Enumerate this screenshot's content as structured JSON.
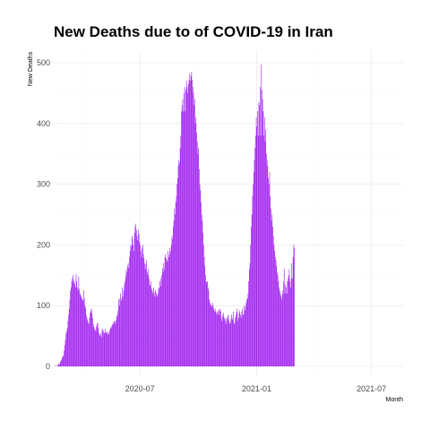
{
  "chart_data": {
    "type": "bar",
    "title": "New Deaths due to of COVID-19 in Iran",
    "xlabel": "Month",
    "ylabel": "New Deaths",
    "ylim": [
      0,
      520
    ],
    "xlim": [
      "2020-02-19",
      "2021-08-20"
    ],
    "grid": true,
    "bar_color": "#a020f0",
    "y_ticks": [
      0,
      100,
      200,
      300,
      400,
      500
    ],
    "x_ticks": [
      {
        "date": "2020-07-01",
        "label": "2020-07"
      },
      {
        "date": "2021-01-01",
        "label": "2021-01"
      },
      {
        "date": "2021-07-01",
        "label": "2021-07"
      }
    ],
    "series": [
      {
        "start_date": "2020-02-19",
        "values": [
          2,
          0,
          0,
          2,
          4,
          3,
          4,
          8,
          9,
          11,
          15,
          16,
          18,
          26,
          35,
          43,
          54,
          58,
          63,
          75,
          85,
          95,
          110,
          125,
          130,
          140,
          145,
          150,
          138,
          142,
          135,
          130,
          152,
          140,
          130,
          125,
          148,
          128,
          120,
          118,
          115,
          112,
          110,
          108,
          125,
          112,
          100,
          96,
          85,
          80,
          76,
          72,
          70,
          80,
          88,
          92,
          95,
          88,
          80,
          70,
          65,
          62,
          60,
          58,
          66,
          70,
          72,
          63,
          55,
          52,
          50,
          55,
          48,
          62,
          60,
          58,
          54,
          56,
          62,
          55,
          56,
          58,
          52,
          54,
          56,
          60,
          64,
          62,
          66,
          68,
          72,
          70,
          75,
          74,
          70,
          76,
          82,
          85,
          92,
          110,
          100,
          112,
          120,
          108,
          112,
          130,
          115,
          125,
          135,
          140,
          148,
          160,
          155,
          165,
          170,
          162,
          180,
          190,
          200,
          198,
          215,
          210,
          200,
          190,
          220,
          230,
          235,
          225,
          215,
          208,
          225,
          218,
          205,
          200,
          190,
          180,
          195,
          200,
          185,
          178,
          170,
          160,
          168,
          175,
          155,
          150,
          160,
          145,
          135,
          132,
          140,
          128,
          125,
          120,
          130,
          122,
          115,
          126,
          122,
          118,
          115,
          120,
          130,
          128,
          140,
          145,
          132,
          150,
          162,
          155,
          170,
          160,
          180,
          185,
          178,
          175,
          172,
          190,
          180,
          185,
          195,
          190,
          200,
          215,
          210,
          230,
          240,
          260,
          250,
          270,
          280,
          300,
          310,
          330,
          340,
          335,
          360,
          380,
          420,
          430,
          440,
          420,
          450,
          460,
          420,
          455,
          470,
          460,
          450,
          465,
          472,
          482,
          470,
          478,
          485,
          472,
          460,
          450,
          430,
          440,
          400,
          410,
          385,
          370,
          350,
          360,
          325,
          300,
          290,
          270,
          250,
          240,
          220,
          200,
          180,
          165,
          150,
          140,
          138,
          140,
          130,
          125,
          110,
          105,
          102,
          100,
          98,
          105,
          100,
          95,
          92,
          90,
          95,
          88,
          85,
          90,
          92,
          85,
          95,
          93,
          90,
          80,
          75,
          85,
          88,
          82,
          78,
          75,
          80,
          70,
          78,
          82,
          85,
          75,
          70,
          72,
          78,
          85,
          80,
          76,
          90,
          70,
          72,
          80,
          85,
          90,
          95,
          75,
          80,
          88,
          92,
          85,
          80,
          90,
          95,
          85,
          85,
          100,
          92,
          98,
          105,
          110,
          112,
          120,
          140,
          160,
          170,
          200,
          230,
          250,
          280,
          300,
          320,
          340,
          360,
          380,
          410,
          395,
          420,
          380,
          435,
          430,
          460,
          380,
          497,
          455,
          440,
          420,
          380,
          410,
          370,
          390,
          350,
          340,
          330,
          310,
          300,
          320,
          280,
          260,
          240,
          250,
          230,
          215,
          200,
          190,
          180,
          175,
          165,
          155,
          150,
          140,
          130,
          125,
          120,
          115,
          110,
          118,
          125,
          140,
          160,
          120,
          135,
          130,
          120,
          140,
          145,
          150,
          160,
          140,
          130,
          145,
          170,
          145,
          180,
          200,
          195
        ]
      }
    ]
  }
}
